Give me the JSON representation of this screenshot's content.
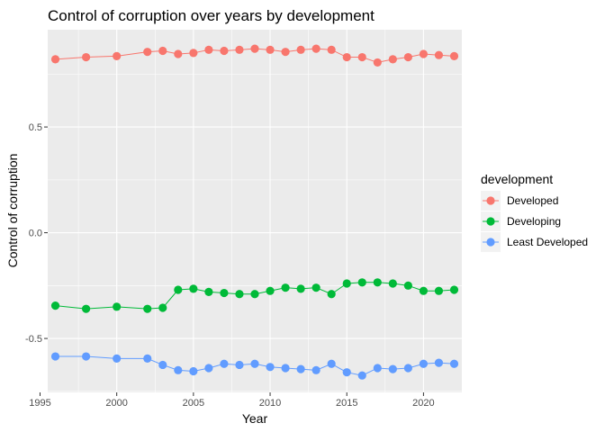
{
  "chart_data": {
    "type": "line",
    "title": "Control of corruption over years by development",
    "xlabel": "Year",
    "ylabel": "Control of corruption",
    "xlim": [
      1995.5,
      2022.5
    ],
    "ylim": [
      -0.755,
      0.96
    ],
    "x_ticks": [
      1995,
      2000,
      2005,
      2010,
      2015,
      2020
    ],
    "x_tick_labels": [
      "1995",
      "2000",
      "2005",
      "2010",
      "2015",
      "2020"
    ],
    "y_ticks": [
      -0.5,
      0,
      0.5
    ],
    "y_tick_labels": [
      "-0.5",
      "0.0",
      "0.5"
    ],
    "grid": true,
    "legend": {
      "title": "development",
      "position": "right"
    },
    "x": [
      1996,
      1998,
      2000,
      2002,
      2003,
      2004,
      2005,
      2006,
      2007,
      2008,
      2009,
      2010,
      2011,
      2012,
      2013,
      2014,
      2015,
      2016,
      2017,
      2018,
      2019,
      2020,
      2021,
      2022
    ],
    "series": [
      {
        "name": "Developed",
        "color": "#F8766D",
        "values": [
          0.82,
          0.83,
          0.835,
          0.855,
          0.86,
          0.845,
          0.85,
          0.865,
          0.86,
          0.865,
          0.87,
          0.865,
          0.855,
          0.865,
          0.87,
          0.865,
          0.83,
          0.83,
          0.805,
          0.82,
          0.83,
          0.845,
          0.84,
          0.835
        ]
      },
      {
        "name": "Developing",
        "color": "#00BA38",
        "values": [
          -0.345,
          -0.36,
          -0.35,
          -0.36,
          -0.355,
          -0.27,
          -0.265,
          -0.28,
          -0.285,
          -0.29,
          -0.29,
          -0.275,
          -0.26,
          -0.265,
          -0.26,
          -0.29,
          -0.24,
          -0.235,
          -0.235,
          -0.24,
          -0.25,
          -0.275,
          -0.275,
          -0.27
        ]
      },
      {
        "name": "Least Developed",
        "color": "#619CFF",
        "values": [
          -0.585,
          -0.585,
          -0.595,
          -0.595,
          -0.625,
          -0.65,
          -0.655,
          -0.64,
          -0.62,
          -0.625,
          -0.62,
          -0.635,
          -0.64,
          -0.645,
          -0.65,
          -0.62,
          -0.66,
          -0.675,
          -0.64,
          -0.645,
          -0.64,
          -0.62,
          -0.615,
          -0.62
        ]
      }
    ]
  }
}
